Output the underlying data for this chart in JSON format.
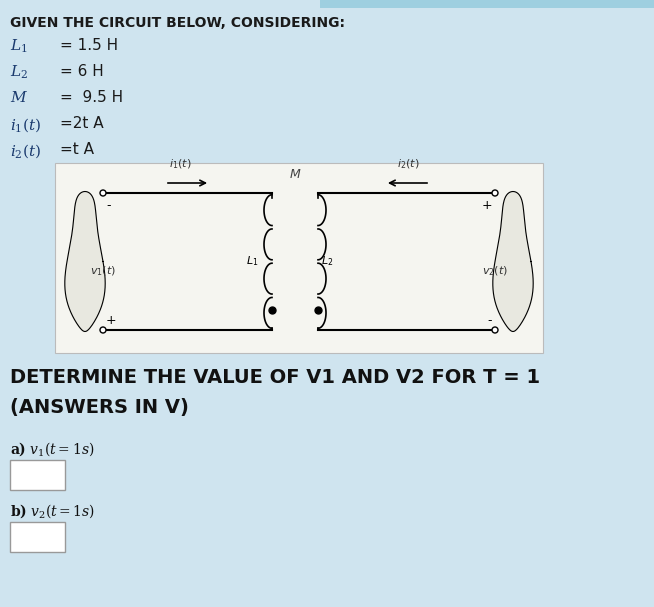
{
  "bg_color": "#cfe4ef",
  "title_text": "GIVEN THE CIRCUIT BELOW, CONSIDERING:",
  "param_lines": [
    [
      "$L_1$",
      "= 1.5 H"
    ],
    [
      "$L_2$",
      "= 6 H"
    ],
    [
      "$M$",
      "=  9.5 H"
    ],
    [
      "$i_1(t)$",
      "=2t A"
    ],
    [
      "$i_2(t)$",
      "=t A"
    ]
  ],
  "determine_line1": "DETERMINE THE VALUE OF V1 AND V2 FOR T = 1",
  "determine_line2": "(ANSWERS IN V)",
  "part_a": "a) $v_1(t=1s)$",
  "part_b": "b) $v_2(t=1s)$",
  "circuit_bg": "#f5f5f0",
  "title_fontsize": 10,
  "param_fontsize": 11,
  "determine_fontsize": 14,
  "part_fontsize": 10,
  "top_stripe_color": "#9ecfe0"
}
